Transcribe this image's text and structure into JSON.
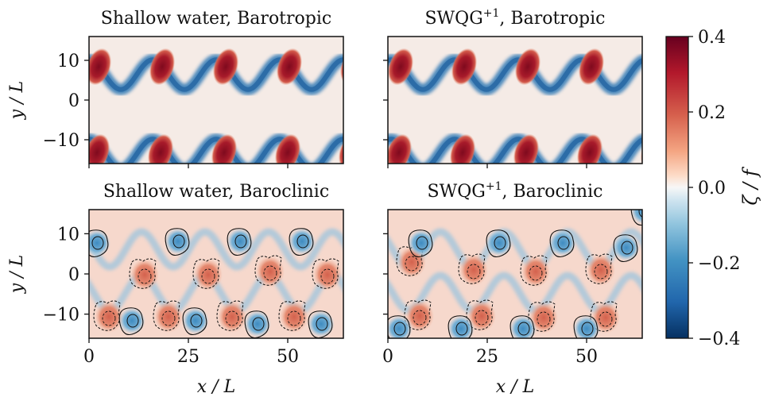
{
  "chart_data": {
    "type": "heatmap",
    "colorbar": {
      "label": "ζ / f",
      "ticks": [
        "0.4",
        "0.2",
        "0.0",
        "−0.2",
        "−0.4"
      ],
      "range": [
        -0.4,
        0.4
      ],
      "colormap": "RdBu_r"
    },
    "colors": {
      "pos_max": "#67001f",
      "neg_max": "#053061",
      "mid": "#f7f7f7"
    },
    "panels": [
      {
        "title_main": "Shallow water, Barotropic",
        "title_sup": "",
        "title_rest": "",
        "ylabel": "y / L",
        "xlabel": "",
        "xlim": [
          0,
          64
        ],
        "ylim": [
          -16,
          16
        ],
        "yticks": [
          "10",
          "0",
          "−10"
        ],
        "xticks": [],
        "contours": false
      },
      {
        "title_main": "SWQG",
        "title_sup": "+1",
        "title_rest": ", Barotropic",
        "ylabel": "",
        "xlabel": "",
        "xlim": [
          0,
          64
        ],
        "ylim": [
          -16,
          16
        ],
        "yticks": [],
        "xticks": [],
        "contours": false
      },
      {
        "title_main": "Shallow water, Baroclinic",
        "title_sup": "",
        "title_rest": "",
        "ylabel": "y / L",
        "xlabel": "x / L",
        "xlim": [
          0,
          64
        ],
        "ylim": [
          -16,
          16
        ],
        "yticks": [
          "10",
          "0",
          "−10"
        ],
        "xticks": [
          "0",
          "25",
          "50"
        ],
        "contours": true
      },
      {
        "title_main": "SWQG",
        "title_sup": "+1",
        "title_rest": ", Baroclinic",
        "ylabel": "",
        "xlabel": "x / L",
        "xlim": [
          0,
          64
        ],
        "ylim": [
          -16,
          16
        ],
        "yticks": [],
        "xticks": [
          "0",
          "25",
          "50"
        ],
        "contours": true
      }
    ]
  }
}
